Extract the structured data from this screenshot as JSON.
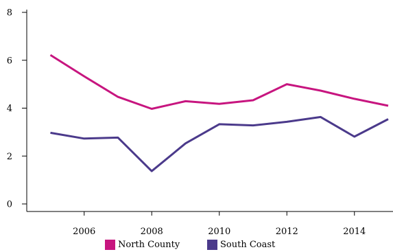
{
  "chart_data": {
    "type": "line",
    "title": "",
    "xlabel": "",
    "ylabel": "",
    "x": [
      2005,
      2006,
      2007,
      2008,
      2009,
      2010,
      2011,
      2012,
      2013,
      2014,
      2015
    ],
    "xlim": [
      2004.3,
      2015
    ],
    "ylim": [
      0,
      8
    ],
    "x_ticks": [
      2006,
      2008,
      2010,
      2012,
      2014
    ],
    "y_ticks": [
      0,
      2,
      4,
      6,
      8
    ],
    "x_tick_labels": [
      "2006",
      "2008",
      "2010",
      "2012",
      "2014"
    ],
    "y_tick_labels": [
      "0",
      "2",
      "4",
      "6",
      "8"
    ],
    "grid": false,
    "legend_position": "bottom-center",
    "series": [
      {
        "name": "North County",
        "color": "#c7157f",
        "values": [
          6.22,
          5.33,
          4.47,
          3.97,
          4.29,
          4.18,
          4.33,
          5.0,
          4.73,
          4.39,
          4.1
        ]
      },
      {
        "name": "South Coast",
        "color": "#4b3a8b",
        "values": [
          2.97,
          2.73,
          2.77,
          1.37,
          2.53,
          3.33,
          3.28,
          3.43,
          3.63,
          2.81,
          3.54
        ]
      }
    ]
  }
}
